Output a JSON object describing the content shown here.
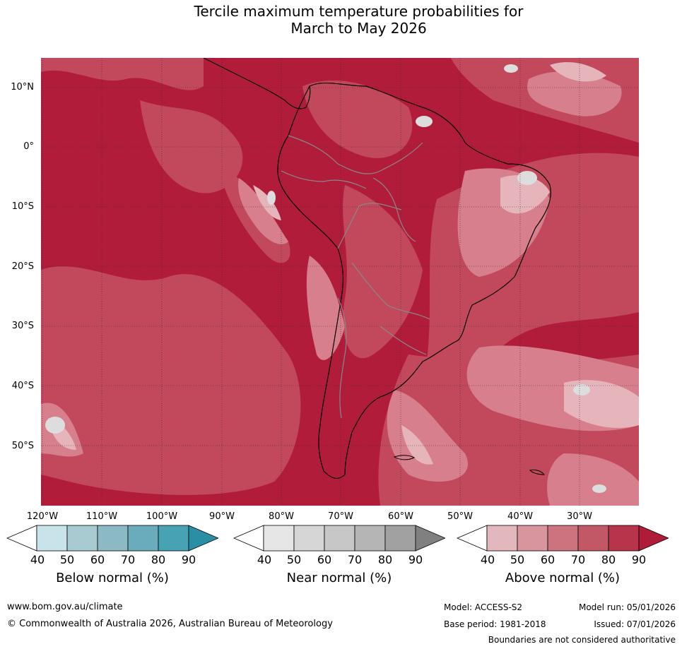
{
  "title_line1": "Tercile maximum temperature probabilities for",
  "title_line2": "March to May 2026",
  "lat_labels": [
    "10°N",
    "0°",
    "10°S",
    "20°S",
    "30°S",
    "40°S",
    "50°S"
  ],
  "lon_labels": [
    "120°W",
    "110°W",
    "100°W",
    "90°W",
    "80°W",
    "70°W",
    "60°W",
    "50°W",
    "40°W",
    "30°W"
  ],
  "colorbars": [
    {
      "title": "Below normal (%)",
      "ticks": [
        "40",
        "50",
        "60",
        "70",
        "80",
        "90"
      ],
      "colors": [
        "#ffffff",
        "#c9e3ea",
        "#a8cbd2",
        "#8bb9c4",
        "#6aacbb",
        "#47a2b3",
        "#2a8ea4"
      ]
    },
    {
      "title": "Near normal (%)",
      "ticks": [
        "40",
        "50",
        "60",
        "70",
        "80",
        "90"
      ],
      "colors": [
        "#ffffff",
        "#e6e6e6",
        "#d6d6d6",
        "#c7c7c7",
        "#b5b5b5",
        "#a1a1a1",
        "#808080"
      ]
    },
    {
      "title": "Above normal (%)",
      "ticks": [
        "40",
        "50",
        "60",
        "70",
        "80",
        "90"
      ],
      "colors": [
        "#ffffff",
        "#e2b7bd",
        "#d8959e",
        "#cd737f",
        "#c25865",
        "#b8344a",
        "#ae1c37"
      ]
    }
  ],
  "footer": {
    "website": "www.bom.gov.au/climate",
    "copyright": "© Commonwealth of Australia 2026, Australian Bureau of Meteorology",
    "model": "Model: ACCESS-S2",
    "base_period": "Base period: 1981-2018",
    "model_run": "Model run: 05/01/2026",
    "issued": "Issued: 07/01/2026",
    "disclaimer": "Boundaries are not considered authoritative"
  },
  "map_colors": {
    "ocean_dark": "#b21c3b",
    "mid": "#c2485c",
    "light": "#d77f8c",
    "pale": "#e6b4bb",
    "grey": "#dddddd"
  }
}
